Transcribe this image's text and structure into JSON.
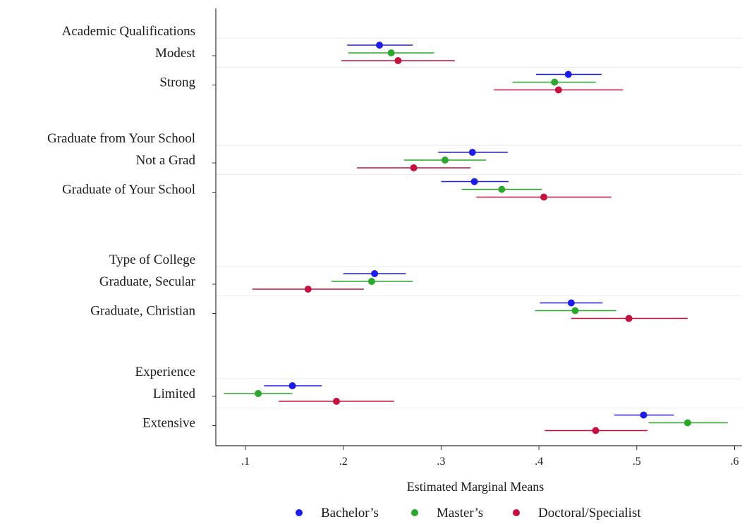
{
  "chart_data": {
    "type": "scatter",
    "subtype": "dot-and-whisker (point estimates with confidence intervals)",
    "title": "",
    "xlabel": "Estimated Marginal Means",
    "ylabel": "",
    "xlim": [
      0.075,
      0.61
    ],
    "xticks": [
      0.1,
      0.2,
      0.3,
      0.4,
      0.5,
      0.6
    ],
    "xtick_labels": [
      ".1",
      ".2",
      ".3",
      ".4",
      ".5",
      ".6"
    ],
    "grid": "horizontal lines between levels",
    "legend_position": "bottom",
    "series_styles": [
      {
        "name": "Bachelor’s",
        "color": "#1c1cf0"
      },
      {
        "name": "Master’s",
        "color": "#2aa82a"
      },
      {
        "name": "Doctoral/Specialist",
        "color": "#c8103e"
      }
    ],
    "groups": [
      {
        "label": "Academic Qualifications",
        "levels": [
          {
            "label": "Modest",
            "estimates": [
              {
                "series": 0,
                "value": 0.237,
                "ci": [
                  0.204,
                  0.271
                ]
              },
              {
                "series": 1,
                "value": 0.249,
                "ci": [
                  0.205,
                  0.293
                ]
              },
              {
                "series": 2,
                "value": 0.256,
                "ci": [
                  0.198,
                  0.314
                ]
              }
            ]
          },
          {
            "label": "Strong",
            "estimates": [
              {
                "series": 0,
                "value": 0.43,
                "ci": [
                  0.397,
                  0.464
                ]
              },
              {
                "series": 1,
                "value": 0.416,
                "ci": [
                  0.373,
                  0.458
                ]
              },
              {
                "series": 2,
                "value": 0.42,
                "ci": [
                  0.354,
                  0.486
                ]
              }
            ]
          }
        ]
      },
      {
        "label": "Graduate from Your School",
        "levels": [
          {
            "label": "Not a Grad",
            "estimates": [
              {
                "series": 0,
                "value": 0.332,
                "ci": [
                  0.297,
                  0.368
                ]
              },
              {
                "series": 1,
                "value": 0.304,
                "ci": [
                  0.262,
                  0.346
                ]
              },
              {
                "series": 2,
                "value": 0.272,
                "ci": [
                  0.214,
                  0.33
                ]
              }
            ]
          },
          {
            "label": "Graduate of Your School",
            "estimates": [
              {
                "series": 0,
                "value": 0.334,
                "ci": [
                  0.3,
                  0.369
                ]
              },
              {
                "series": 1,
                "value": 0.362,
                "ci": [
                  0.321,
                  0.403
                ]
              },
              {
                "series": 2,
                "value": 0.405,
                "ci": [
                  0.336,
                  0.474
                ]
              }
            ]
          }
        ]
      },
      {
        "label": "Type of College",
        "levels": [
          {
            "label": "Graduate, Secular",
            "estimates": [
              {
                "series": 0,
                "value": 0.232,
                "ci": [
                  0.2,
                  0.264
                ]
              },
              {
                "series": 1,
                "value": 0.229,
                "ci": [
                  0.188,
                  0.271
                ]
              },
              {
                "series": 2,
                "value": 0.164,
                "ci": [
                  0.107,
                  0.221
                ]
              }
            ]
          },
          {
            "label": "Graduate, Christian",
            "estimates": [
              {
                "series": 0,
                "value": 0.433,
                "ci": [
                  0.401,
                  0.465
                ]
              },
              {
                "series": 1,
                "value": 0.437,
                "ci": [
                  0.396,
                  0.479
                ]
              },
              {
                "series": 2,
                "value": 0.492,
                "ci": [
                  0.433,
                  0.552
                ]
              }
            ]
          }
        ]
      },
      {
        "label": "Experience",
        "levels": [
          {
            "label": "Limited",
            "estimates": [
              {
                "series": 0,
                "value": 0.148,
                "ci": [
                  0.119,
                  0.178
                ]
              },
              {
                "series": 1,
                "value": 0.113,
                "ci": [
                  0.078,
                  0.148
                ]
              },
              {
                "series": 2,
                "value": 0.193,
                "ci": [
                  0.134,
                  0.252
                ]
              }
            ]
          },
          {
            "label": "Extensive",
            "estimates": [
              {
                "series": 0,
                "value": 0.507,
                "ci": [
                  0.477,
                  0.538
                ]
              },
              {
                "series": 1,
                "value": 0.552,
                "ci": [
                  0.512,
                  0.593
                ]
              },
              {
                "series": 2,
                "value": 0.458,
                "ci": [
                  0.406,
                  0.511
                ]
              }
            ]
          }
        ]
      }
    ]
  }
}
